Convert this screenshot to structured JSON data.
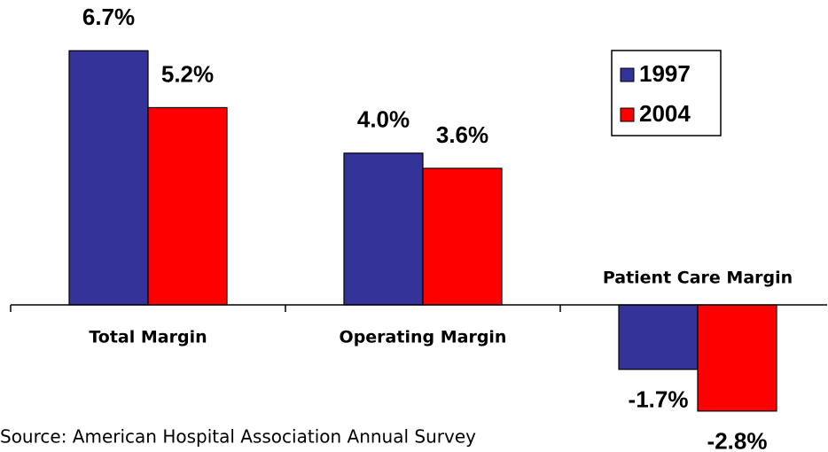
{
  "chart_data": {
    "type": "bar",
    "categories": [
      "Total Margin",
      "Operating Margin",
      "Patient Care Margin"
    ],
    "series": [
      {
        "name": "1997",
        "color": "#333399",
        "values": [
          6.7,
          4.0,
          -1.7
        ],
        "value_labels": [
          "6.7%",
          "4.0%",
          "-1.7%"
        ]
      },
      {
        "name": "2004",
        "color": "#ff0000",
        "values": [
          5.2,
          3.6,
          -2.8
        ],
        "value_labels": [
          "5.2%",
          "3.6%",
          "-2.8%"
        ]
      }
    ],
    "legend": "upper right",
    "source": "Source: American Hospital Association Annual Survey"
  }
}
